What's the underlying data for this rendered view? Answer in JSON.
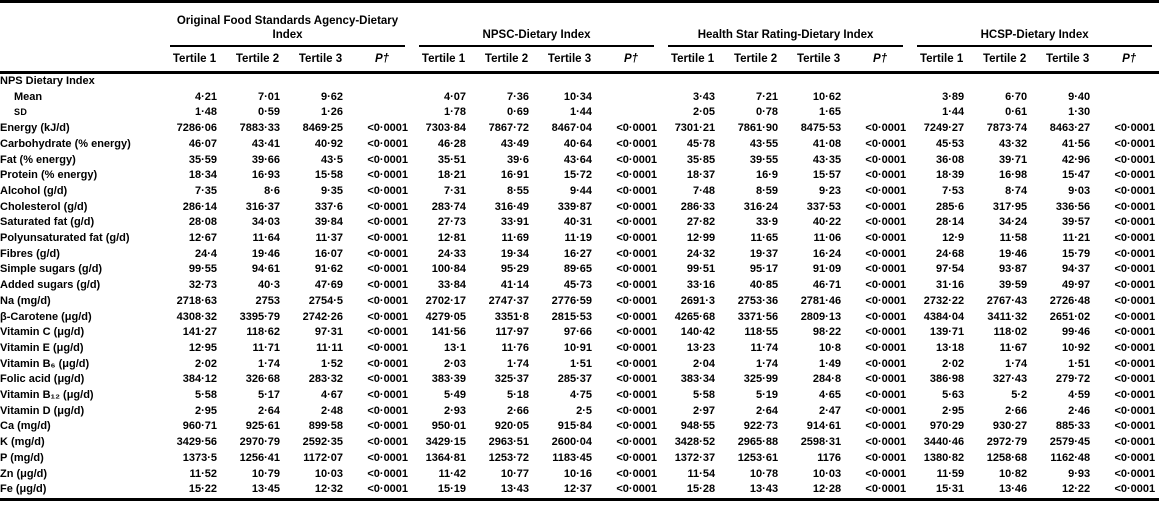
{
  "table": {
    "groups": [
      {
        "title": "Original Food Standards Agency-Dietary Index",
        "cols": [
          "Tertile 1",
          "Tertile 2",
          "Tertile 3",
          "P†"
        ]
      },
      {
        "title": "NPSC-Dietary Index",
        "cols": [
          "Tertile 1",
          "Tertile 2",
          "Tertile 3",
          "P†"
        ]
      },
      {
        "title": "Health Star Rating-Dietary Index",
        "cols": [
          "Tertile 1",
          "Tertile 2",
          "Tertile 3",
          "P†"
        ]
      },
      {
        "title": "HCSP-Dietary Index",
        "cols": [
          "Tertile 1",
          "Tertile 2",
          "Tertile 3",
          "P†"
        ]
      }
    ],
    "rows": [
      {
        "label": "NPS Dietary Index",
        "section": true
      },
      {
        "label": "Mean",
        "indent": true,
        "cells": [
          "4·21",
          "7·01",
          "9·62",
          "",
          "4·07",
          "7·36",
          "10·34",
          "",
          "3·43",
          "7·21",
          "10·62",
          "",
          "3·89",
          "6·70",
          "9·40",
          ""
        ]
      },
      {
        "label": "SD",
        "indent": true,
        "small": true,
        "cells": [
          "1·48",
          "0·59",
          "1·26",
          "",
          "1·78",
          "0·69",
          "1·44",
          "",
          "2·05",
          "0·78",
          "1·65",
          "",
          "1·44",
          "0·61",
          "1·30",
          ""
        ]
      },
      {
        "label": "Energy (kJ/d)",
        "cells": [
          "7286·06",
          "7883·33",
          "8469·25",
          "<0·0001",
          "7303·84",
          "7867·72",
          "8467·04",
          "<0·0001",
          "7301·21",
          "7861·90",
          "8475·53",
          "<0·0001",
          "7249·27",
          "7873·74",
          "8463·27",
          "<0·0001"
        ]
      },
      {
        "label": "Carbohydrate (% energy)",
        "cells": [
          "46·07",
          "43·41",
          "40·92",
          "<0·0001",
          "46·28",
          "43·49",
          "40·64",
          "<0·0001",
          "45·78",
          "43·55",
          "41·08",
          "<0·0001",
          "45·53",
          "43·32",
          "41·56",
          "<0·0001"
        ]
      },
      {
        "label": "Fat (% energy)",
        "cells": [
          "35·59",
          "39·66",
          "43·5",
          "<0·0001",
          "35·51",
          "39·6",
          "43·64",
          "<0·0001",
          "35·85",
          "39·55",
          "43·35",
          "<0·0001",
          "36·08",
          "39·71",
          "42·96",
          "<0·0001"
        ]
      },
      {
        "label": "Protein (% energy)",
        "cells": [
          "18·34",
          "16·93",
          "15·58",
          "<0·0001",
          "18·21",
          "16·91",
          "15·72",
          "<0·0001",
          "18·37",
          "16·9",
          "15·57",
          "<0·0001",
          "18·39",
          "16·98",
          "15·47",
          "<0·0001"
        ]
      },
      {
        "label": "Alcohol (g/d)",
        "cells": [
          "7·35",
          "8·6",
          "9·35",
          "<0·0001",
          "7·31",
          "8·55",
          "9·44",
          "<0·0001",
          "7·48",
          "8·59",
          "9·23",
          "<0·0001",
          "7·53",
          "8·74",
          "9·03",
          "<0·0001"
        ]
      },
      {
        "label": "Cholesterol (g/d)",
        "cells": [
          "286·14",
          "316·37",
          "337·6",
          "<0·0001",
          "283·74",
          "316·49",
          "339·87",
          "<0·0001",
          "286·33",
          "316·24",
          "337·53",
          "<0·0001",
          "285·6",
          "317·95",
          "336·56",
          "<0·0001"
        ]
      },
      {
        "label": "Saturated fat (g/d)",
        "cells": [
          "28·08",
          "34·03",
          "39·84",
          "<0·0001",
          "27·73",
          "33·91",
          "40·31",
          "<0·0001",
          "27·82",
          "33·9",
          "40·22",
          "<0·0001",
          "28·14",
          "34·24",
          "39·57",
          "<0·0001"
        ]
      },
      {
        "label": "Polyunsaturated fat (g/d)",
        "cells": [
          "12·67",
          "11·64",
          "11·37",
          "<0·0001",
          "12·81",
          "11·69",
          "11·19",
          "<0·0001",
          "12·99",
          "11·65",
          "11·06",
          "<0·0001",
          "12·9",
          "11·58",
          "11·21",
          "<0·0001"
        ]
      },
      {
        "label": "Fibres (g/d)",
        "cells": [
          "24·4",
          "19·46",
          "16·07",
          "<0·0001",
          "24·33",
          "19·34",
          "16·27",
          "<0·0001",
          "24·32",
          "19·37",
          "16·24",
          "<0·0001",
          "24·68",
          "19·46",
          "15·79",
          "<0·0001"
        ]
      },
      {
        "label": "Simple sugars (g/d)",
        "cells": [
          "99·55",
          "94·61",
          "91·62",
          "<0·0001",
          "100·84",
          "95·29",
          "89·65",
          "<0·0001",
          "99·51",
          "95·17",
          "91·09",
          "<0·0001",
          "97·54",
          "93·87",
          "94·37",
          "<0·0001"
        ]
      },
      {
        "label": "Added sugars (g/d)",
        "cells": [
          "32·73",
          "40·3",
          "47·69",
          "<0·0001",
          "33·84",
          "41·14",
          "45·73",
          "<0·0001",
          "33·16",
          "40·85",
          "46·71",
          "<0·0001",
          "31·16",
          "39·59",
          "49·97",
          "<0·0001"
        ]
      },
      {
        "label": "Na (mg/d)",
        "cells": [
          "2718·63",
          "2753",
          "2754·5",
          "<0·0001",
          "2702·17",
          "2747·37",
          "2776·59",
          "<0·0001",
          "2691·3",
          "2753·36",
          "2781·46",
          "<0·0001",
          "2732·22",
          "2767·43",
          "2726·48",
          "<0·0001"
        ]
      },
      {
        "label": "β-Carotene (μg/d)",
        "cells": [
          "4308·32",
          "3395·79",
          "2742·26",
          "<0·0001",
          "4279·05",
          "3351·8",
          "2815·53",
          "<0·0001",
          "4265·68",
          "3371·56",
          "2809·13",
          "<0·0001",
          "4384·04",
          "3411·32",
          "2651·02",
          "<0·0001"
        ]
      },
      {
        "label": "Vitamin C (μg/d)",
        "cells": [
          "141·27",
          "118·62",
          "97·31",
          "<0·0001",
          "141·56",
          "117·97",
          "97·66",
          "<0·0001",
          "140·42",
          "118·55",
          "98·22",
          "<0·0001",
          "139·71",
          "118·02",
          "99·46",
          "<0·0001"
        ]
      },
      {
        "label": "Vitamin E (μg/d)",
        "cells": [
          "12·95",
          "11·71",
          "11·11",
          "<0·0001",
          "13·1",
          "11·76",
          "10·91",
          "<0·0001",
          "13·23",
          "11·74",
          "10·8",
          "<0·0001",
          "13·18",
          "11·67",
          "10·92",
          "<0·0001"
        ]
      },
      {
        "label": "Vitamin B₆ (μg/d)",
        "cells": [
          "2·02",
          "1·74",
          "1·52",
          "<0·0001",
          "2·03",
          "1·74",
          "1·51",
          "<0·0001",
          "2·04",
          "1·74",
          "1·49",
          "<0·0001",
          "2·02",
          "1·74",
          "1·51",
          "<0·0001"
        ]
      },
      {
        "label": "Folic acid (μg/d)",
        "cells": [
          "384·12",
          "326·68",
          "283·32",
          "<0·0001",
          "383·39",
          "325·37",
          "285·37",
          "<0·0001",
          "383·34",
          "325·99",
          "284·8",
          "<0·0001",
          "386·98",
          "327·43",
          "279·72",
          "<0·0001"
        ]
      },
      {
        "label": "Vitamin B₁₂ (μg/d)",
        "cells": [
          "5·58",
          "5·17",
          "4·67",
          "<0·0001",
          "5·49",
          "5·18",
          "4·75",
          "<0·0001",
          "5·58",
          "5·19",
          "4·65",
          "<0·0001",
          "5·63",
          "5·2",
          "4·59",
          "<0·0001"
        ]
      },
      {
        "label": "Vitamin D (μg/d)",
        "cells": [
          "2·95",
          "2·64",
          "2·48",
          "<0·0001",
          "2·93",
          "2·66",
          "2·5",
          "<0·0001",
          "2·97",
          "2·64",
          "2·47",
          "<0·0001",
          "2·95",
          "2·66",
          "2·46",
          "<0·0001"
        ]
      },
      {
        "label": "Ca (mg/d)",
        "cells": [
          "960·71",
          "925·61",
          "899·58",
          "<0·0001",
          "950·01",
          "920·05",
          "915·84",
          "<0·0001",
          "948·55",
          "922·73",
          "914·61",
          "<0·0001",
          "970·29",
          "930·27",
          "885·33",
          "<0·0001"
        ]
      },
      {
        "label": "K (mg/d)",
        "cells": [
          "3429·56",
          "2970·79",
          "2592·35",
          "<0·0001",
          "3429·15",
          "2963·51",
          "2600·04",
          "<0·0001",
          "3428·52",
          "2965·88",
          "2598·31",
          "<0·0001",
          "3440·46",
          "2972·79",
          "2579·45",
          "<0·0001"
        ]
      },
      {
        "label": "P (mg/d)",
        "cells": [
          "1373·5",
          "1256·41",
          "1172·07",
          "<0·0001",
          "1364·81",
          "1253·72",
          "1183·45",
          "<0·0001",
          "1372·37",
          "1253·61",
          "1176",
          "<0·0001",
          "1380·82",
          "1258·68",
          "1162·48",
          "<0·0001"
        ]
      },
      {
        "label": "Zn (μg/d)",
        "cells": [
          "11·52",
          "10·79",
          "10·03",
          "<0·0001",
          "11·42",
          "10·77",
          "10·16",
          "<0·0001",
          "11·54",
          "10·78",
          "10·03",
          "<0·0001",
          "11·59",
          "10·82",
          "9·93",
          "<0·0001"
        ]
      },
      {
        "label": "Fe (μg/d)",
        "cells": [
          "15·22",
          "13·45",
          "12·32",
          "<0·0001",
          "15·19",
          "13·43",
          "12·37",
          "<0·0001",
          "15·28",
          "13·43",
          "12·28",
          "<0·0001",
          "15·31",
          "13·46",
          "12·22",
          "<0·0001"
        ]
      }
    ]
  }
}
